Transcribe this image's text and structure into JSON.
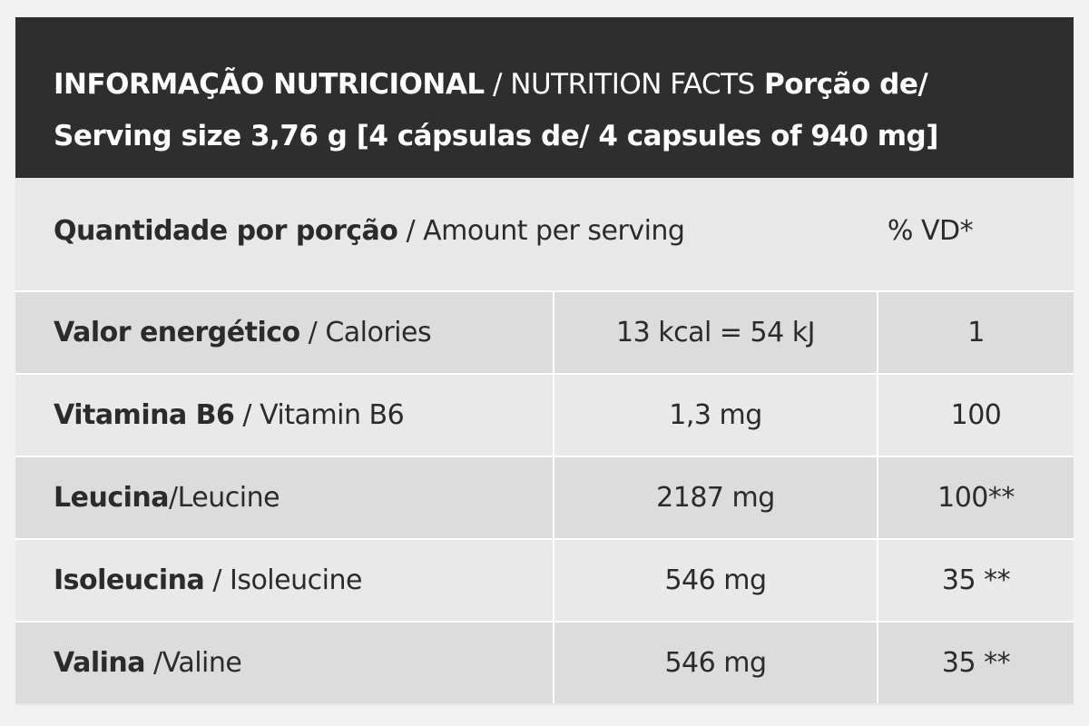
{
  "header": {
    "title_pt": "INFORMAÇÃO NUTRICIONAL",
    "title_sep": " / ",
    "title_en": "NUTRITION FACTS",
    "serving_bold": " Porção de/ Serving size 3,76 g [4 cápsulas de/ 4 capsules of 940 mg]"
  },
  "amount_row": {
    "label_pt": "Quantidade por porção",
    "label_en": " / Amount per serving",
    "vd_label": "% VD*"
  },
  "rows": [
    {
      "name_pt": "Valor energético",
      "name_en": " / Calories",
      "amount": "13 kcal = 54 kJ",
      "vd": "1"
    },
    {
      "name_pt": "Vitamina B6",
      "name_en": " / Vitamin B6",
      "amount": "1,3 mg",
      "vd": "100"
    },
    {
      "name_pt": "Leucina",
      "name_en": "/Leucine",
      "amount": "2187 mg",
      "vd": "100**"
    },
    {
      "name_pt": "Isoleucina",
      "name_en": " / Isoleucine",
      "amount": "546 mg",
      "vd": "35 **"
    },
    {
      "name_pt": "Valina",
      "name_en": " /Valine",
      "amount": "546 mg",
      "vd": "35 **"
    }
  ]
}
